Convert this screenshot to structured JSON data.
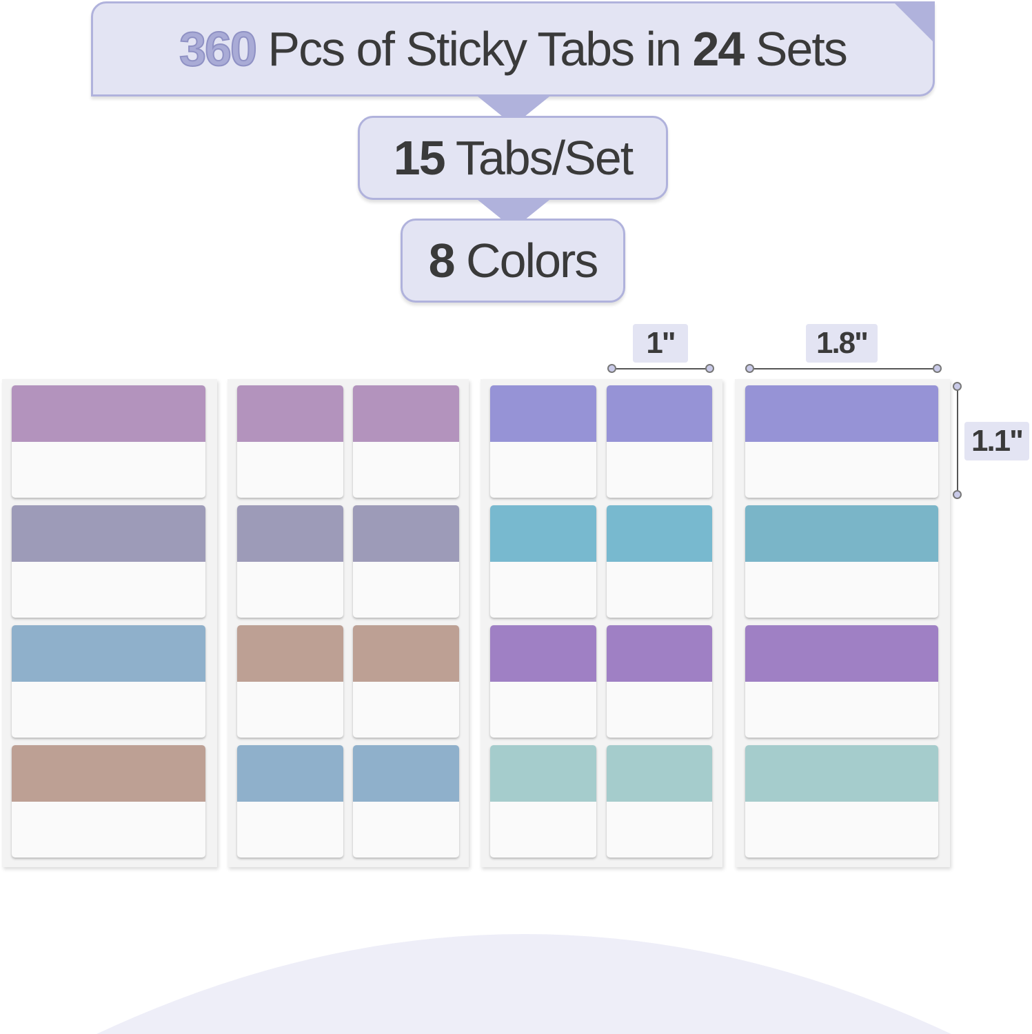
{
  "headline": {
    "count": "360",
    "middle": "Pcs of Sticky Tabs in",
    "sets": "24",
    "end": "Sets"
  },
  "per_set": {
    "count": "15",
    "label": "Tabs/Set"
  },
  "colors_count": {
    "count": "8",
    "label": "Colors"
  },
  "dimensions": {
    "small_width": "1\"",
    "large_width": "1.8\"",
    "height": "1.1\""
  },
  "palette": {
    "accent": "#b0b2dc",
    "bubble_bg": "#e3e4f3",
    "number_accent": "#a9abd6"
  },
  "sheets": [
    {
      "columns": 1,
      "rows": [
        "#b393bd",
        "#9d9bb8",
        "#8fb0cb",
        "#bda094"
      ]
    },
    {
      "columns": 2,
      "rows": [
        "#b393bd",
        "#9d9bb8",
        "#bda094",
        "#8fb0cb"
      ]
    },
    {
      "columns": 2,
      "rows": [
        "#9693d6",
        "#78b9cf",
        "#9f80c4",
        "#a5cccc"
      ]
    },
    {
      "columns": 1,
      "rows": [
        "#9693d6",
        "#7ab5c8",
        "#9f80c4",
        "#a5cccc"
      ]
    }
  ]
}
